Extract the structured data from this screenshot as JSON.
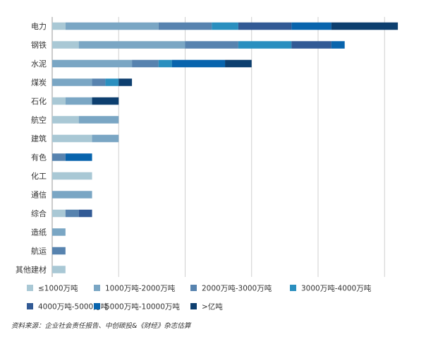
{
  "chart_data": {
    "type": "bar",
    "orientation": "horizontal",
    "stacked": true,
    "title": "",
    "xlabel": "",
    "ylabel": "",
    "grid": true,
    "legend_position": "bottom",
    "xlim": [
      0,
      26
    ],
    "categories": [
      "电力",
      "钢铁",
      "水泥",
      "煤炭",
      "石化",
      "航空",
      "建筑",
      "有色",
      "化工",
      "通信",
      "综合",
      "造纸",
      "航运",
      "其他建材"
    ],
    "series": [
      {
        "name": "≤1000万吨",
        "color": "#a9c8d5",
        "values": [
          1,
          2,
          0,
          0,
          1,
          2,
          3,
          0,
          3,
          0,
          1,
          0,
          0,
          1
        ]
      },
      {
        "name": "1000万吨-2000万吨",
        "color": "#7aa6c4",
        "values": [
          7,
          8,
          6,
          3,
          2,
          3,
          2,
          0,
          0,
          3,
          0,
          1,
          0,
          0
        ]
      },
      {
        "name": "2000万吨-3000万吨",
        "color": "#5783af",
        "values": [
          4,
          4,
          2,
          1,
          0,
          0,
          0,
          1,
          0,
          0,
          1,
          0,
          1,
          0
        ]
      },
      {
        "name": "3000万吨-4000万吨",
        "color": "#2a8fbf",
        "values": [
          2,
          4,
          1,
          1,
          0,
          0,
          0,
          0,
          0,
          0,
          0,
          0,
          0,
          0
        ]
      },
      {
        "name": "4000万吨-5000万吨",
        "color": "#325a95",
        "values": [
          4,
          3,
          0,
          0,
          0,
          0,
          0,
          0,
          0,
          0,
          1,
          0,
          0,
          0
        ]
      },
      {
        "name": "5000万吨-10000万吨",
        "color": "#0864ad",
        "values": [
          3,
          1,
          4,
          0,
          0,
          0,
          0,
          2,
          0,
          0,
          0,
          0,
          0,
          0
        ]
      },
      {
        "name": ">亿吨",
        "color": "#0d3f6f",
        "values": [
          5,
          0,
          2,
          1,
          2,
          0,
          0,
          0,
          0,
          0,
          0,
          0,
          0,
          0
        ]
      }
    ]
  },
  "source_text": "资料来源：企业社会责任报告、中创碳投&《财经》杂志估算"
}
